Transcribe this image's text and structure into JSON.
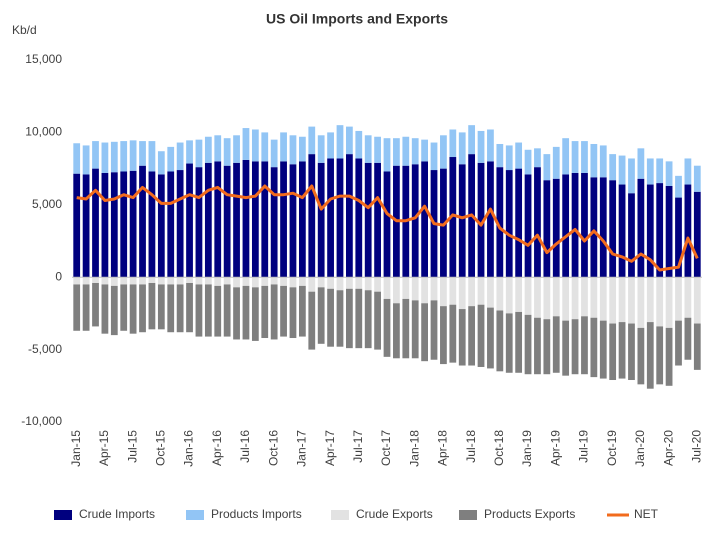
{
  "chart_data": {
    "type": "bar",
    "stacked": true,
    "title": "US Oil Imports and Exports",
    "y_label": "Kb/d",
    "categories": [
      "Jan-15",
      null,
      null,
      "Apr-15",
      null,
      null,
      "Jul-15",
      null,
      null,
      "Oct-15",
      null,
      null,
      "Jan-16",
      null,
      null,
      "Apr-16",
      null,
      null,
      "Jul-16",
      null,
      null,
      "Oct-16",
      null,
      null,
      "Jan-17",
      null,
      null,
      "Apr-17",
      null,
      null,
      "Jul-17",
      null,
      null,
      "Oct-17",
      null,
      null,
      "Jan-18",
      null,
      null,
      "Apr-18",
      null,
      null,
      "Jul-18",
      null,
      null,
      "Oct-18",
      null,
      null,
      "Jan-19",
      null,
      null,
      "Apr-19",
      null,
      null,
      "Jul-19",
      null,
      null,
      "Oct-19",
      null,
      null,
      "Jan-20",
      null,
      null,
      "Apr-20",
      null,
      null,
      "Jul-20"
    ],
    "series": [
      {
        "name": "Crude Imports",
        "color": "#00007f",
        "values": [
          7150,
          7100,
          7500,
          7200,
          7250,
          7300,
          7350,
          7700,
          7300,
          7100,
          7300,
          7400,
          7850,
          7600,
          7900,
          8000,
          7700,
          7900,
          8100,
          8000,
          8000,
          7600,
          8000,
          7800,
          8000,
          8500,
          7900,
          8200,
          8200,
          8500,
          8200,
          7900,
          7900,
          7300,
          7700,
          7700,
          7800,
          8000,
          7400,
          7500,
          8300,
          7800,
          8500,
          7900,
          8000,
          7600,
          7400,
          7500,
          7100,
          7600,
          6700,
          6800,
          7100,
          7200,
          7200,
          6900,
          6900,
          6700,
          6400,
          5800,
          6800,
          6400,
          6500,
          6300,
          5500,
          6400,
          5900
        ]
      },
      {
        "name": "Products Imports",
        "color": "#92c5f5",
        "values": [
          2100,
          2000,
          1900,
          2100,
          2100,
          2100,
          2100,
          1700,
          2100,
          1600,
          1700,
          1900,
          1600,
          1900,
          1800,
          1800,
          1900,
          1900,
          2200,
          2200,
          2000,
          1900,
          2000,
          2000,
          1700,
          1900,
          1900,
          1800,
          2300,
          1900,
          1900,
          1900,
          1800,
          2300,
          1900,
          2000,
          1800,
          1500,
          1900,
          2300,
          1900,
          2200,
          2000,
          2200,
          2200,
          1600,
          1700,
          1800,
          1700,
          1300,
          1800,
          2200,
          2500,
          2200,
          2200,
          2300,
          2200,
          1800,
          2000,
          2400,
          2100,
          1800,
          1700,
          1700,
          1500,
          1800,
          1800
        ]
      },
      {
        "name": "Crude Exports",
        "color": "#e2e2e2",
        "values": [
          -500,
          -500,
          -400,
          -500,
          -600,
          -500,
          -500,
          -500,
          -400,
          -500,
          -500,
          -500,
          -400,
          -500,
          -500,
          -600,
          -500,
          -700,
          -600,
          -700,
          -600,
          -500,
          -600,
          -700,
          -600,
          -1000,
          -700,
          -800,
          -900,
          -800,
          -800,
          -900,
          -1000,
          -1500,
          -1800,
          -1500,
          -1600,
          -1800,
          -1600,
          -2000,
          -1900,
          -2200,
          -2000,
          -1900,
          -2100,
          -2300,
          -2500,
          -2400,
          -2600,
          -2800,
          -2900,
          -2700,
          -3000,
          -2900,
          -2700,
          -2800,
          -3000,
          -3200,
          -3100,
          -3200,
          -3500,
          -3100,
          -3400,
          -3500,
          -3000,
          -2800,
          -3200
        ]
      },
      {
        "name": "Products Exports",
        "color": "#7f7f7f",
        "values": [
          -3200,
          -3200,
          -3000,
          -3400,
          -3400,
          -3200,
          -3400,
          -3300,
          -3200,
          -3100,
          -3300,
          -3300,
          -3400,
          -3600,
          -3600,
          -3500,
          -3600,
          -3600,
          -3700,
          -3700,
          -3600,
          -3800,
          -3500,
          -3500,
          -3500,
          -4000,
          -3900,
          -4000,
          -3900,
          -4100,
          -4100,
          -4000,
          -4000,
          -4000,
          -3800,
          -4100,
          -4000,
          -4000,
          -4100,
          -4000,
          -4000,
          -3900,
          -4100,
          -4300,
          -4200,
          -4200,
          -4100,
          -4200,
          -4100,
          -3900,
          -3800,
          -3900,
          -3800,
          -3800,
          -4000,
          -4100,
          -4000,
          -3900,
          -3900,
          -3900,
          -3900,
          -4600,
          -4000,
          -4000,
          -3100,
          -2900,
          -3200
        ]
      },
      {
        "name": "NET",
        "type": "line",
        "color": "#f26b1d",
        "values": [
          5500,
          5400,
          6000,
          5300,
          5400,
          5700,
          5500,
          6200,
          5700,
          5100,
          5100,
          5400,
          5700,
          5500,
          6000,
          6200,
          5700,
          5600,
          5500,
          5600,
          6300,
          5700,
          5700,
          5800,
          5500,
          6300,
          4700,
          5400,
          5600,
          5600,
          5300,
          4800,
          5500,
          4400,
          3900,
          3900,
          4100,
          4900,
          3700,
          3600,
          4300,
          4100,
          4300,
          3600,
          4700,
          3400,
          2900,
          2600,
          2200,
          2900,
          1700,
          2300,
          2800,
          3300,
          2500,
          3200,
          2500,
          1600,
          1400,
          1100,
          1600,
          1200,
          500,
          600,
          700,
          2700,
          1300
        ]
      }
    ],
    "ylim": [
      -10000,
      15000
    ],
    "yticks": [
      {
        "value": -10000,
        "label": "-10,000"
      },
      {
        "value": -5000,
        "label": "-5,000"
      },
      0,
      {
        "value": 5000,
        "label": "5,000"
      },
      {
        "value": 10000,
        "label": "10,000"
      },
      {
        "value": 15000,
        "label": "15,000"
      }
    ],
    "grid": false,
    "legend": "bottom"
  }
}
